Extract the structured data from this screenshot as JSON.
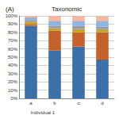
{
  "chart_data": {
    "type": "bar",
    "title": "Taxonomic",
    "subtitle": "(A)",
    "categories": [
      "a",
      "b",
      "c",
      "d"
    ],
    "group_label": "Individual 1",
    "stacked": true,
    "grid": true,
    "ylim": [
      0,
      100
    ],
    "yticks": [
      {
        "value": 0,
        "label": "0%"
      },
      {
        "value": 10,
        "label": "10%"
      },
      {
        "value": 20,
        "label": "20%"
      },
      {
        "value": 30,
        "label": "30%"
      },
      {
        "value": 40,
        "label": "40%"
      },
      {
        "value": 50,
        "label": "50%"
      },
      {
        "value": 60,
        "label": "60%"
      },
      {
        "value": 70,
        "label": "70%"
      },
      {
        "value": 80,
        "label": "80%"
      },
      {
        "value": 90,
        "label": "90%"
      },
      {
        "value": 100,
        "label": "100%"
      }
    ],
    "series": [
      {
        "color": "#3d6fa8",
        "values": [
          88,
          58,
          63,
          47
        ]
      },
      {
        "color": "#c4622d",
        "values": [
          2,
          24,
          17,
          33
        ]
      },
      {
        "color": "#c9a227",
        "values": [
          3,
          3,
          4,
          4
        ]
      },
      {
        "color": "#9a9a9a",
        "values": [
          2,
          3,
          4,
          3
        ]
      },
      {
        "color": "#8db4e2",
        "values": [
          3,
          6,
          6,
          7
        ]
      },
      {
        "color": "#f2b8a2",
        "values": [
          2,
          6,
          6,
          6
        ]
      }
    ]
  }
}
